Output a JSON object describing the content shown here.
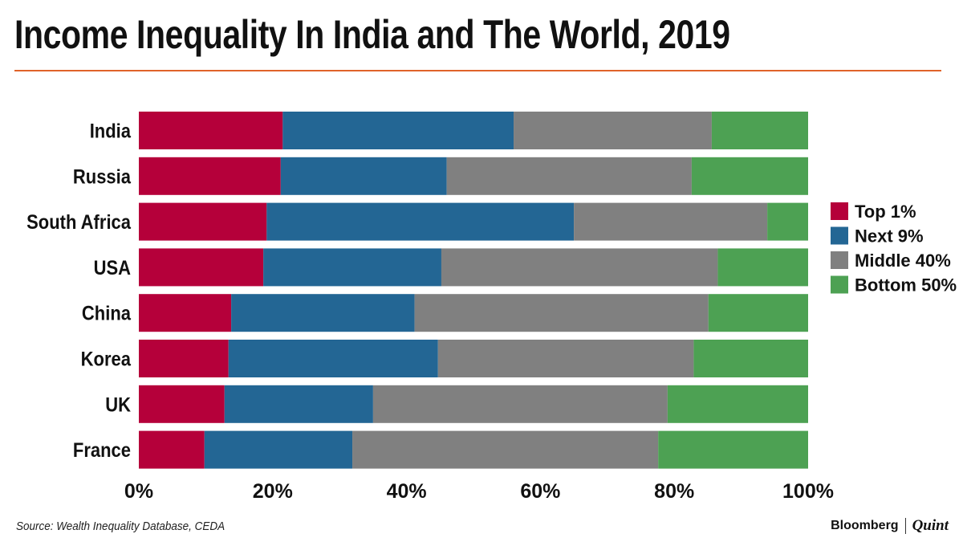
{
  "chart_data": {
    "type": "bar",
    "orientation": "horizontal",
    "stacked": true,
    "title": "Income Inequality In India and The World, 2019",
    "categories": [
      "India",
      "Russia",
      "South Africa",
      "USA",
      "China",
      "Korea",
      "UK",
      "France"
    ],
    "series": [
      {
        "name": "Top 1%",
        "color": "#b5003a",
        "values": [
          21.5,
          21.2,
          19.1,
          18.6,
          13.8,
          13.4,
          12.8,
          9.8
        ]
      },
      {
        "name": "Next 9%",
        "color": "#236694",
        "values": [
          34.5,
          24.8,
          45.9,
          26.6,
          27.4,
          31.3,
          22.2,
          22.1
        ]
      },
      {
        "name": "Middle 40%",
        "color": "#808080",
        "values": [
          29.6,
          36.6,
          28.9,
          41.3,
          43.9,
          38.2,
          44.0,
          45.7
        ]
      },
      {
        "name": "Bottom 50%",
        "color": "#4da153",
        "values": [
          14.4,
          17.4,
          6.1,
          13.5,
          14.9,
          17.1,
          21.0,
          22.4
        ]
      }
    ],
    "xlim": [
      0,
      100
    ],
    "xticks": [
      "0%",
      "20%",
      "40%",
      "60%",
      "80%",
      "100%"
    ],
    "legend": "right",
    "grid": false
  },
  "source": "Source: Wealth Inequality Database, CEDA",
  "logo": {
    "left": "Bloomberg",
    "right": "Quint"
  }
}
